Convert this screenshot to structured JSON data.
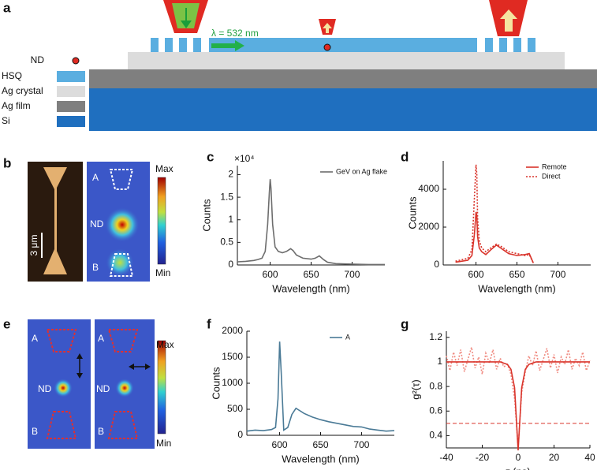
{
  "panel_labels": [
    "a",
    "b",
    "c",
    "d",
    "e",
    "f",
    "g"
  ],
  "diagram": {
    "wavelength_label": "λ = 532 nm",
    "legend": [
      "ND",
      "HSQ",
      "Ag crystal",
      "Ag film",
      "Si"
    ]
  },
  "panel_b": {
    "labels": [
      "A",
      "ND",
      "B"
    ],
    "scale_bar": "3 μm",
    "colorbar": [
      "Max",
      "Min"
    ]
  },
  "panel_e": {
    "labels": [
      "A",
      "ND",
      "B"
    ],
    "colorbar": [
      "Max",
      "Min"
    ]
  },
  "chart_data": [
    {
      "type": "line",
      "y_multiplier": "×10⁴",
      "xlabel": "Wavelength (nm)",
      "ylabel": "Counts",
      "xlim": [
        560,
        740
      ],
      "xticks": [
        600,
        650,
        700
      ],
      "ylim": [
        0,
        2.2
      ],
      "yticks": [
        0,
        0.5,
        1,
        1.5,
        2
      ],
      "legend": "upper right",
      "x": [
        560,
        570,
        580,
        585,
        590,
        594,
        597,
        599,
        600,
        601,
        603,
        606,
        610,
        615,
        620,
        625,
        628,
        632,
        640,
        650,
        655,
        660,
        665,
        670,
        680,
        700,
        720,
        740
      ],
      "series": [
        {
          "name": "GeV on Ag flake",
          "color": "#6d6d6d",
          "style": "solid",
          "values": [
            0.07,
            0.08,
            0.1,
            0.12,
            0.15,
            0.3,
            0.9,
            1.6,
            1.9,
            1.7,
            0.9,
            0.4,
            0.3,
            0.27,
            0.3,
            0.36,
            0.32,
            0.22,
            0.15,
            0.13,
            0.15,
            0.2,
            0.12,
            0.06,
            0.03,
            0.02,
            0.01,
            0.01
          ]
        }
      ]
    },
    {
      "type": "line",
      "xlabel": "Wavelength (nm)",
      "ylabel": "Counts",
      "xlim": [
        560,
        740
      ],
      "xticks": [
        600,
        650,
        700
      ],
      "ylim": [
        0,
        5500
      ],
      "yticks": [
        0,
        2000,
        4000
      ],
      "legend": "upper right",
      "x": [
        575,
        580,
        590,
        595,
        598,
        600,
        601,
        602,
        604,
        607,
        612,
        618,
        625,
        630,
        640,
        650,
        660,
        665,
        670
      ],
      "series": [
        {
          "name": "Remote",
          "color": "#d9342b",
          "style": "solid",
          "values": [
            150,
            180,
            250,
            500,
            1600,
            2800,
            2600,
            1500,
            900,
            700,
            550,
            800,
            1050,
            900,
            600,
            500,
            550,
            600,
            100
          ]
        },
        {
          "name": "Direct",
          "color": "#d9342b",
          "style": "dotted",
          "values": [
            200,
            250,
            350,
            800,
            3500,
            5300,
            4800,
            2500,
            1300,
            900,
            700,
            900,
            1100,
            1000,
            700,
            600,
            500,
            550,
            100
          ]
        }
      ]
    },
    {
      "type": "line",
      "xlabel": "Wavelength (nm)",
      "ylabel": "Counts",
      "xlim": [
        560,
        740
      ],
      "xticks": [
        600,
        650,
        700
      ],
      "ylim": [
        0,
        2000
      ],
      "yticks": [
        0,
        500,
        1000,
        1500,
        2000
      ],
      "legend": "upper right",
      "x": [
        560,
        570,
        580,
        590,
        595,
        598,
        600,
        602,
        605,
        610,
        615,
        620,
        625,
        630,
        640,
        650,
        660,
        670,
        680,
        690,
        700,
        710,
        720,
        730,
        740
      ],
      "series": [
        {
          "name": "A",
          "color": "#4a7a96",
          "style": "solid",
          "values": [
            80,
            100,
            90,
            110,
            150,
            700,
            1800,
            1200,
            100,
            150,
            400,
            520,
            470,
            420,
            350,
            300,
            260,
            230,
            200,
            170,
            160,
            120,
            100,
            80,
            90
          ]
        }
      ]
    },
    {
      "type": "line",
      "xlabel": "τ (ns)",
      "ylabel": "g²(τ)",
      "xlim": [
        -40,
        40
      ],
      "xticks": [
        -40,
        -20,
        0,
        20,
        40
      ],
      "ylim": [
        0.3,
        1.25
      ],
      "yticks": [
        0.4,
        0.6,
        0.8,
        1,
        1.2
      ],
      "hline": 0.5,
      "x": [
        -40,
        -38,
        -36,
        -34,
        -32,
        -30,
        -28,
        -26,
        -24,
        -22,
        -20,
        -18,
        -16,
        -14,
        -12,
        -10,
        -8,
        -6,
        -4,
        -2,
        0,
        2,
        4,
        6,
        8,
        10,
        12,
        14,
        16,
        18,
        20,
        22,
        24,
        26,
        28,
        30,
        32,
        34,
        36,
        38,
        40
      ],
      "series": [
        {
          "color": "#f08a80",
          "style": "dotted",
          "values": [
            1.05,
            0.93,
            1.08,
            0.97,
            1.1,
            0.92,
            1.02,
            1.12,
            0.95,
            1.04,
            0.9,
            1.07,
            0.99,
            1.1,
            0.94,
            1.03,
            0.96,
            0.98,
            0.9,
            0.7,
            0.3,
            0.75,
            0.92,
            1.05,
            0.97,
            1.09,
            0.93,
            1.02,
            1.11,
            0.95,
            1.06,
            0.91,
            1.04,
            0.98,
            1.1,
            0.94,
            1.03,
            0.97,
            1.08,
            0.93,
            1.01
          ]
        },
        {
          "color": "#d9342b",
          "style": "solid",
          "values": [
            1,
            1,
            1,
            1,
            1,
            1,
            1,
            1,
            1,
            1,
            1,
            1,
            1,
            1,
            1,
            1,
            0.99,
            0.98,
            0.94,
            0.79,
            0.28,
            0.79,
            0.94,
            0.98,
            0.99,
            1,
            1,
            1,
            1,
            1,
            1,
            1,
            1,
            1,
            1,
            1,
            1,
            1,
            1,
            1,
            1
          ]
        }
      ]
    }
  ]
}
